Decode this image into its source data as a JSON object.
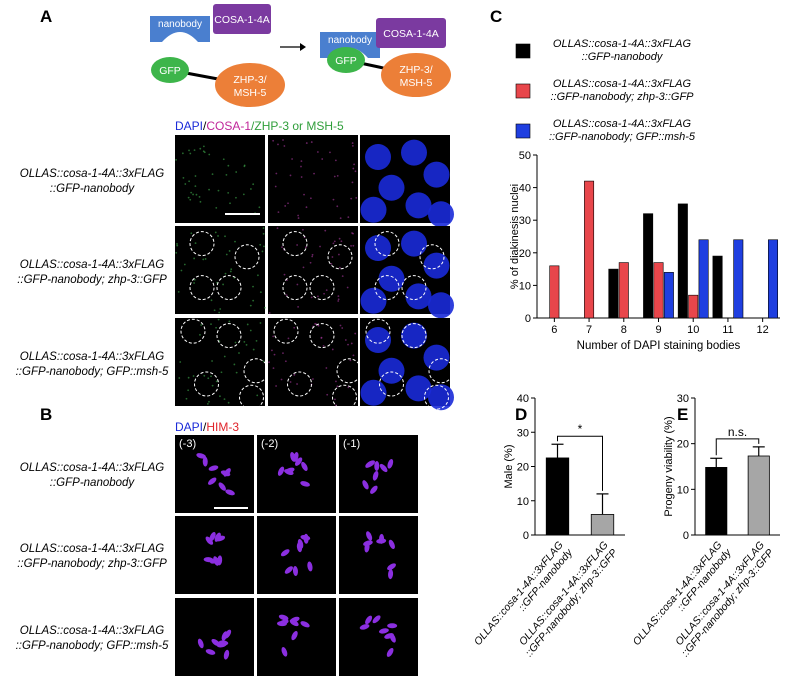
{
  "panel_a": {
    "label": "A",
    "diagram": {
      "before": {
        "nanobody": "nanobody",
        "cosa": "COSA-1-4A",
        "gfp": "GFP",
        "zhp": [
          "ZHP-3/",
          "MSH-5"
        ]
      },
      "after": {
        "nanobody": "nanobody",
        "cosa": "COSA-1-4A",
        "gfp": "GFP",
        "zhp": [
          "ZHP-3/",
          "MSH-5"
        ]
      }
    },
    "header": [
      "DAPI",
      "/",
      "COSA-1",
      "/ZHP-3 or MSH-5"
    ],
    "rows": [
      [
        "OLLAS::cosa-1-4A::3xFLAG",
        "::GFP-nanobody"
      ],
      [
        "OLLAS::cosa-1-4A::3xFLAG",
        "::GFP-nanobody; zhp-3::GFP"
      ],
      [
        "OLLAS::cosa-1-4A::3xFLAG",
        "::GFP-nanobody; GFP::msh-5"
      ]
    ]
  },
  "panel_b": {
    "label": "B",
    "header": [
      "DAPI",
      "/",
      "HIM-3"
    ],
    "columns": [
      "(-3)",
      "(-2)",
      "(-1)"
    ],
    "rows": [
      [
        "OLLAS::cosa-1-4A::3xFLAG",
        "::GFP-nanobody"
      ],
      [
        "OLLAS::cosa-1-4A::3xFLAG",
        "::GFP-nanobody; zhp-3::GFP"
      ],
      [
        "OLLAS::cosa-1-4A::3xFLAG",
        "::GFP-nanobody; GFP::msh-5"
      ]
    ]
  },
  "chart_data": [
    {
      "type": "bar",
      "label": "C",
      "categories": [
        "6",
        "7",
        "8",
        "9",
        "10",
        "11",
        "12"
      ],
      "series": [
        {
          "name": "OLLAS::cosa-1-4A::3xFLAG ::GFP-nanobody",
          "color": "#000000",
          "values": [
            0,
            0,
            15,
            32,
            35,
            19,
            0
          ]
        },
        {
          "name": "OLLAS::cosa-1-4A::3xFLAG ::GFP-nanobody; zhp-3::GFP",
          "color": "#e8464b",
          "values": [
            16,
            42,
            17,
            17,
            7,
            0,
            0
          ]
        },
        {
          "name": "OLLAS::cosa-1-4A::3xFLAG ::GFP-nanobody; GFP::msh-5",
          "color": "#1f3fe0",
          "values": [
            0,
            0,
            0,
            14,
            24,
            24,
            24
          ]
        }
      ],
      "ylim": [
        0,
        50
      ],
      "yticks": [
        0,
        10,
        20,
        30,
        40,
        50
      ],
      "y_label": "% of diakinesis nuclei",
      "x_label": "Number of DAPI staining bodies"
    },
    {
      "type": "bar",
      "label": "D",
      "categories": [
        [
          "OLLAS::cosa-1-4A::3xFLAG",
          "::GFP-nanobody"
        ],
        [
          "OLLAS::cosa-1-4A::3xFLAG",
          "::GFP-nanobody; zhp-3::GFP"
        ]
      ],
      "values": [
        22.5,
        6
      ],
      "errors": [
        4,
        6
      ],
      "colors": [
        "#000000",
        "#a6a6a6"
      ],
      "ylim": [
        0,
        40
      ],
      "yticks": [
        0,
        10,
        20,
        30,
        40
      ],
      "y_label": "Male (%)",
      "annotation": "*"
    },
    {
      "type": "bar",
      "label": "E",
      "categories": [
        [
          "OLLAS::cosa-1-4A::3xFLAG",
          "::GFP-nanobody"
        ],
        [
          "OLLAS::cosa-1-4A::3xFLAG",
          "::GFP-nanobody; zhp-3::GFP"
        ]
      ],
      "values": [
        14.8,
        17.3
      ],
      "errors": [
        2,
        2
      ],
      "colors": [
        "#000000",
        "#a6a6a6"
      ],
      "ylim": [
        0,
        30
      ],
      "yticks": [
        0,
        10,
        20,
        30
      ],
      "y_label": "Progeny viability (%)",
      "annotation": "n.s."
    }
  ]
}
